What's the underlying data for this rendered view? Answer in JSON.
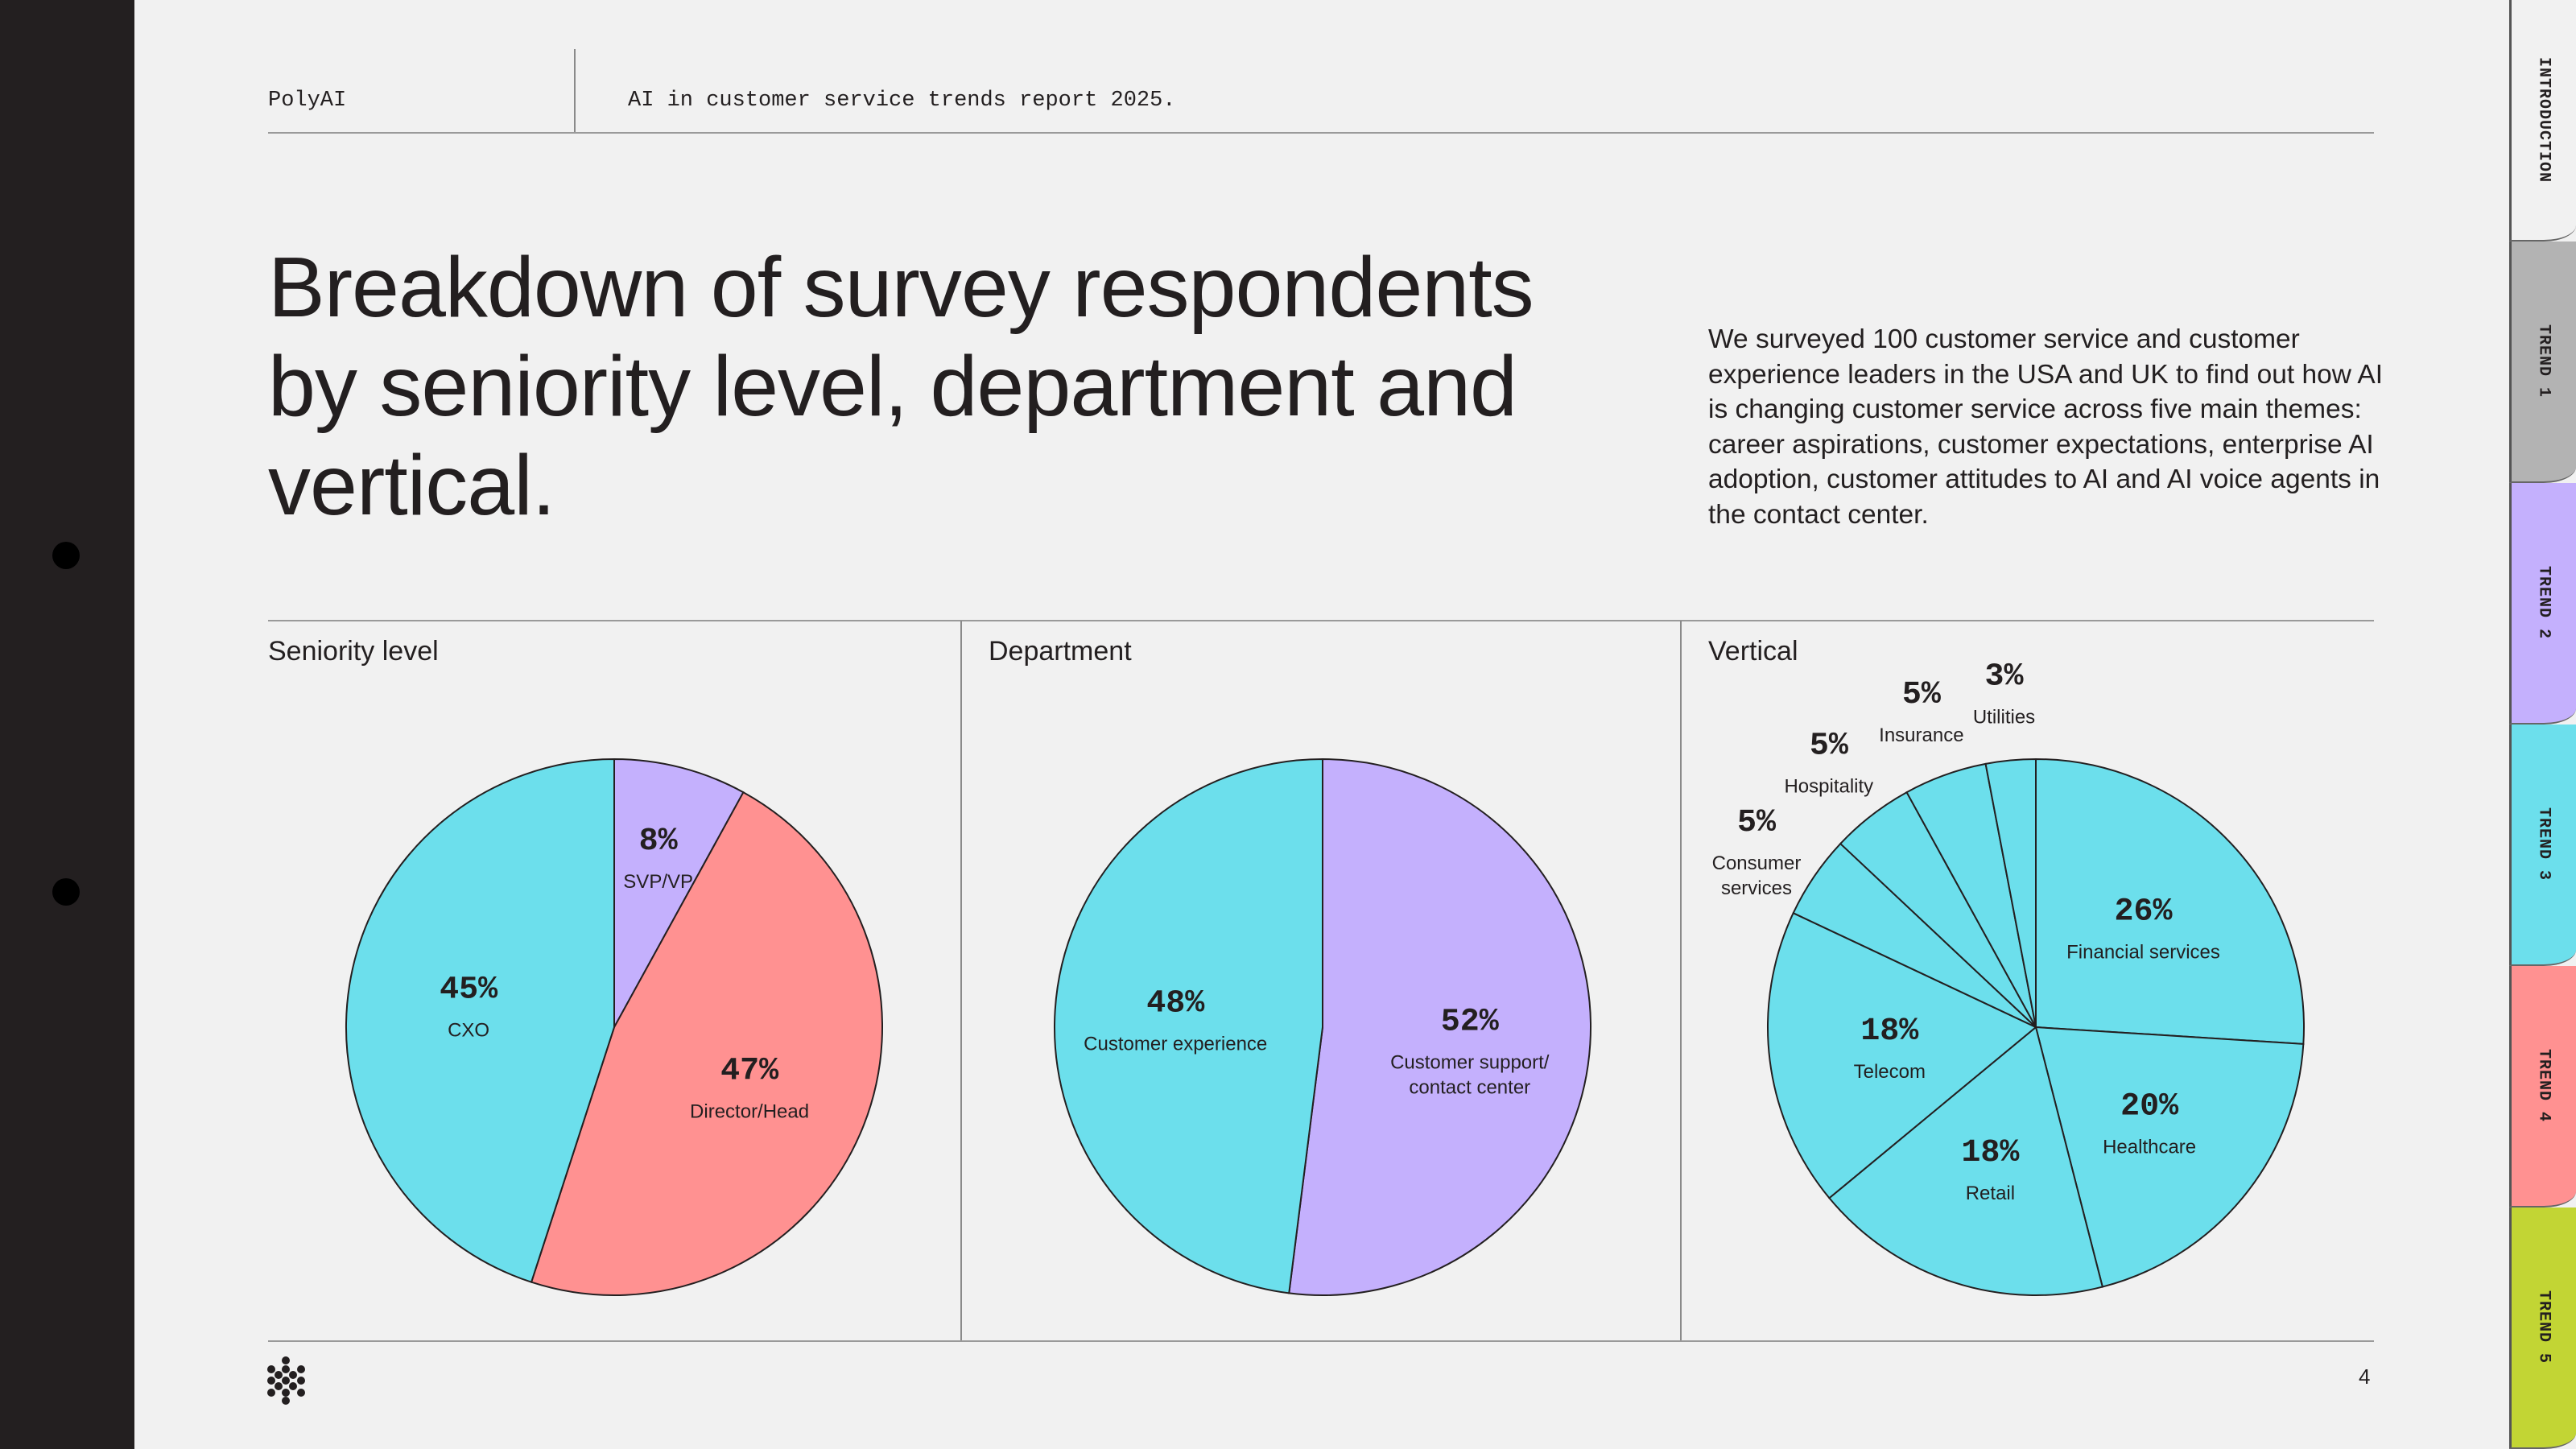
{
  "header": {
    "brand": "PolyAI",
    "report_title": "AI in customer service trends report 2025."
  },
  "title": "Breakdown of survey respondents by seniority level, department and vertical.",
  "intro": "We surveyed 100 customer service and customer experience leaders in the USA and UK to find out how AI is changing customer service across five main themes: career aspirations, customer expectations, enterprise AI adoption, customer attitudes to AI and AI voice agents in the contact center.",
  "tabs": [
    {
      "label": "INTRODUCTION",
      "color": "#f1f1f1"
    },
    {
      "label": "TREND 1",
      "color": "#b3b3b3"
    },
    {
      "label": "TREND 2",
      "color": "#c4b0fd"
    },
    {
      "label": "TREND 3",
      "color": "#6cdfec"
    },
    {
      "label": "TREND 4",
      "color": "#ff9191"
    },
    {
      "label": "TREND 5",
      "color": "#c2d534"
    }
  ],
  "page_number": "4",
  "chart_data": [
    {
      "type": "pie",
      "title": "Seniority level",
      "slices": [
        {
          "label": "SVP/VP",
          "value": 8,
          "pct": "8%",
          "color": "#c4b0fd"
        },
        {
          "label": "Director/Head",
          "value": 47,
          "pct": "47%",
          "color": "#ff9191"
        },
        {
          "label": "CXO",
          "value": 45,
          "pct": "45%",
          "color": "#6cdfec"
        }
      ]
    },
    {
      "type": "pie",
      "title": "Department",
      "slices": [
        {
          "label": "Customer support/\ncontact center",
          "value": 52,
          "pct": "52%",
          "color": "#c4b0fd"
        },
        {
          "label": "Customer experience",
          "value": 48,
          "pct": "48%",
          "color": "#6cdfec"
        }
      ]
    },
    {
      "type": "pie",
      "title": "Vertical",
      "slices": [
        {
          "label": "Financial services",
          "value": 26,
          "pct": "26%",
          "color": "#6cdfec"
        },
        {
          "label": "Healthcare",
          "value": 20,
          "pct": "20%",
          "color": "#6cdfec"
        },
        {
          "label": "Retail",
          "value": 18,
          "pct": "18%",
          "color": "#6cdfec"
        },
        {
          "label": "Telecom",
          "value": 18,
          "pct": "18%",
          "color": "#6cdfec"
        },
        {
          "label": "Consumer\nservices",
          "value": 5,
          "pct": "5%",
          "color": "#6cdfec"
        },
        {
          "label": "Hospitality",
          "value": 5,
          "pct": "5%",
          "color": "#6cdfec"
        },
        {
          "label": "Insurance",
          "value": 5,
          "pct": "5%",
          "color": "#6cdfec"
        },
        {
          "label": "Utilities",
          "value": 3,
          "pct": "3%",
          "color": "#6cdfec"
        }
      ]
    }
  ]
}
